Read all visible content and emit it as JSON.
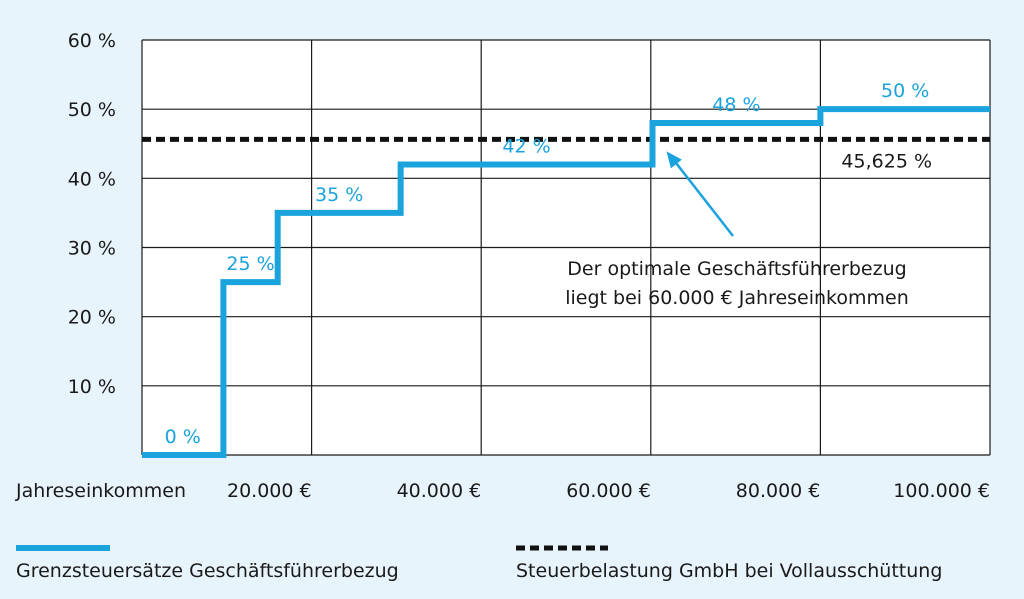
{
  "chart_data": {
    "type": "line",
    "xlabel": "Jahreseinkommen",
    "ylim": [
      0,
      60
    ],
    "xlim": [
      0,
      100000
    ],
    "yticks": [
      {
        "value": 10,
        "label": "10 %"
      },
      {
        "value": 20,
        "label": "20 %"
      },
      {
        "value": 30,
        "label": "30 %"
      },
      {
        "value": 40,
        "label": "40 %"
      },
      {
        "value": 50,
        "label": "50 %"
      },
      {
        "value": 60,
        "label": "60 %"
      }
    ],
    "xticks": [
      {
        "value": 20000,
        "label": "20.000 €"
      },
      {
        "value": 40000,
        "label": "40.000 €"
      },
      {
        "value": 60000,
        "label": "60.000 €"
      },
      {
        "value": 80000,
        "label": "80.000 €"
      },
      {
        "value": 100000,
        "label": "100.000 €"
      }
    ],
    "grid": true,
    "series": [
      {
        "name": "Grenzsteuersätze Geschäftsführerbezug",
        "color": "#1aa3dc",
        "style": "step",
        "steps": [
          {
            "from": 0,
            "to": 9600,
            "value": 0,
            "label": "0 %"
          },
          {
            "from": 9600,
            "to": 16000,
            "value": 25,
            "label": "25 %"
          },
          {
            "from": 16000,
            "to": 30500,
            "value": 35,
            "label": "35 %"
          },
          {
            "from": 30500,
            "to": 60200,
            "value": 42,
            "label": "42 %"
          },
          {
            "from": 60200,
            "to": 80000,
            "value": 48,
            "label": "48 %"
          },
          {
            "from": 80000,
            "to": 100000,
            "value": 50,
            "label": "50 %"
          }
        ]
      },
      {
        "name": "Steuerbelastung GmbH bei Vollausschüttung",
        "color": "#111111",
        "style": "dashed",
        "value": 45.625,
        "label": "45,625 %"
      }
    ],
    "annotation": {
      "lines": [
        "Der optimale Geschäftsführerbezug",
        "liegt bei 60.000 € Jahreseinkommen"
      ],
      "target": {
        "x": 60200,
        "y": 45.625
      }
    },
    "legend": "bottom"
  }
}
